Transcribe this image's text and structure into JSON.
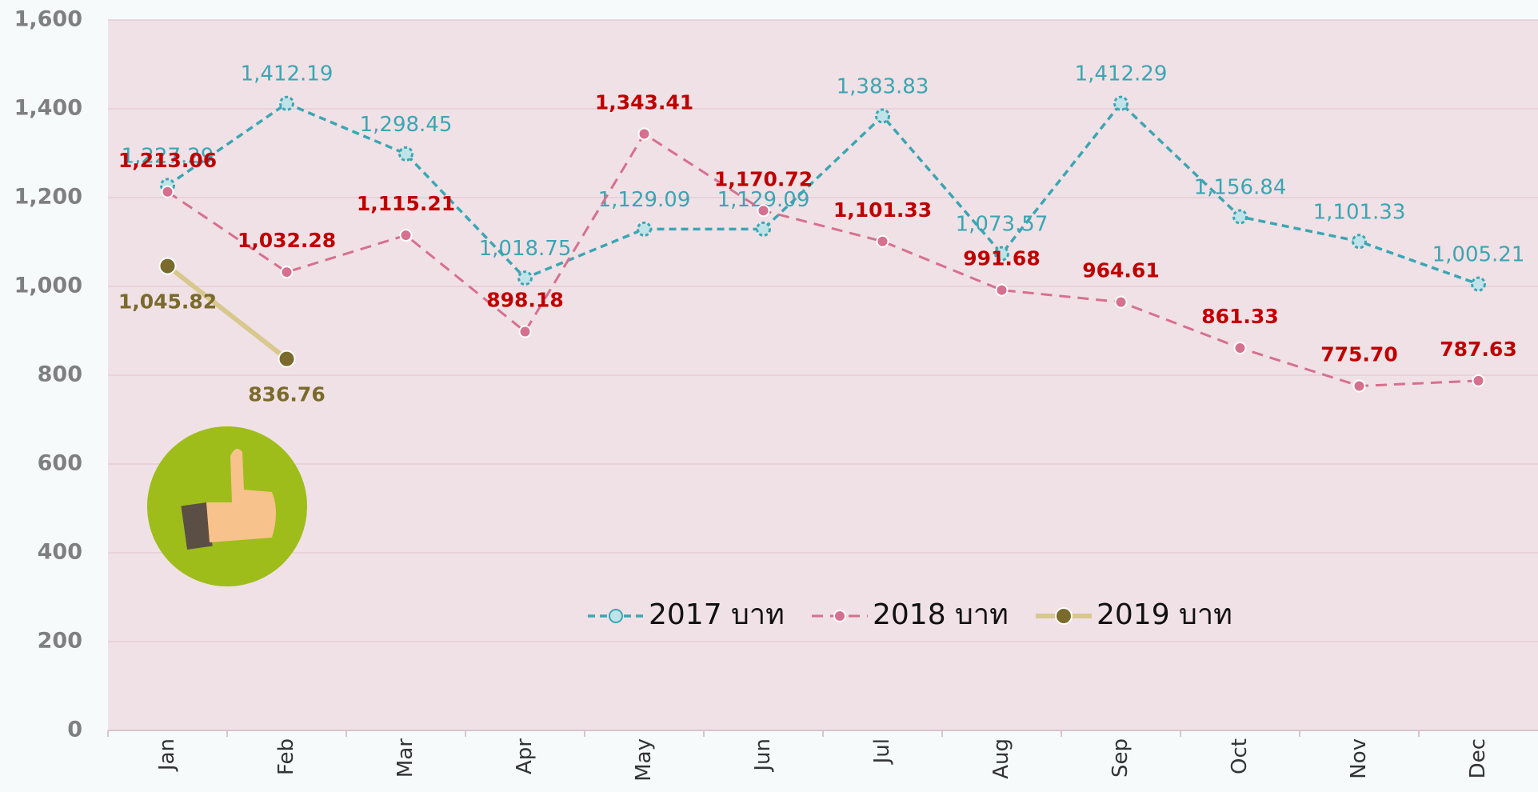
{
  "chart_data": {
    "type": "line",
    "categories": [
      "Jan",
      "Feb",
      "Mar",
      "Apr",
      "May",
      "Jun",
      "Jul",
      "Aug",
      "Sep",
      "Oct",
      "Nov",
      "Dec"
    ],
    "series": [
      {
        "name": "2017 บาท",
        "color": "#3ba6b3",
        "values": [
          1227.29,
          1412.19,
          1298.45,
          1018.75,
          1129.09,
          1129.09,
          1383.83,
          1073.57,
          1412.29,
          1156.84,
          1101.33,
          1005.21
        ],
        "value_labels": [
          "1,227.29",
          "1,412.19",
          "1,298.45",
          "1,018.75",
          "1,129.09",
          "1,129.09",
          "1,383.83",
          "1,073.57",
          "1,412.29",
          "1,156.84",
          "1,101.33",
          "1,005.21"
        ]
      },
      {
        "name": "2018 บาท",
        "color": "#d6708f",
        "values": [
          1213.06,
          1032.28,
          1115.21,
          898.18,
          1343.41,
          1170.72,
          1101.33,
          991.68,
          964.61,
          861.33,
          775.7,
          787.63
        ],
        "value_labels": [
          "1,213.06",
          "1,032.28",
          "1,115.21",
          "898.18",
          "1,343.41",
          "1,170.72",
          "1,101.33",
          "991.68",
          "964.61",
          "861.33",
          "775.70",
          "787.63"
        ]
      },
      {
        "name": "2019 บาท",
        "color": "#d8c88e",
        "values": [
          1045.82,
          836.76,
          null,
          null,
          null,
          null,
          null,
          null,
          null,
          null,
          null,
          null
        ],
        "value_labels": [
          "1,045.82",
          "836.76",
          null,
          null,
          null,
          null,
          null,
          null,
          null,
          null,
          null,
          null
        ]
      }
    ],
    "ylim": [
      0,
      1600
    ],
    "yticks": [
      0,
      200,
      400,
      600,
      800,
      {
        "value": 1000,
        "label": "1,000"
      },
      {
        "value": 1200,
        "label": "1,200"
      },
      {
        "value": 1400,
        "label": "1,400"
      },
      {
        "value": 1600,
        "label": "1,600"
      }
    ],
    "grid": true
  }
}
